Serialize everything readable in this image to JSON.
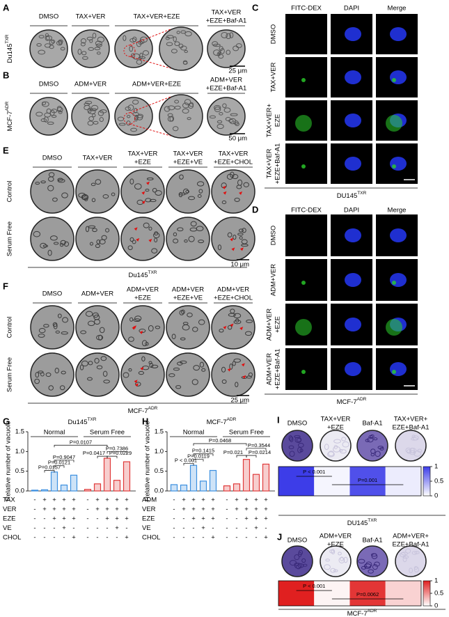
{
  "panels": {
    "A": {
      "label": "A",
      "headers": [
        [
          "DMSO"
        ],
        [
          "TAX+VER"
        ],
        [
          "TAX+VER+EZE"
        ],
        [
          "TAX+VER",
          "+EZE+Baf-A1"
        ]
      ],
      "cell_line": {
        "text": "Du145",
        "sup": "TXR"
      },
      "scale": "25 μm"
    },
    "B": {
      "label": "B",
      "headers": [
        [
          "DMSO"
        ],
        [
          "ADM+VER"
        ],
        [
          "ADM+VER+EZE"
        ],
        [
          "ADM+VER",
          "+EZE+Baf-A1"
        ]
      ],
      "cell_line": {
        "text": "MCF-7",
        "sup": "ADR"
      },
      "scale": "50 μm"
    },
    "C": {
      "label": "C",
      "headers": [
        "FITC-DEX",
        "DAPI",
        "Merge"
      ],
      "header_colors": [
        "#1a9a1a",
        "#2233cc",
        "#000000"
      ],
      "rows": [
        [
          "DMSO"
        ],
        [
          "TAX+VER"
        ],
        [
          "TAX+VER+",
          "EZE"
        ],
        [
          "TAX+VER",
          "+EZE+Baf-A1"
        ]
      ],
      "cell_line": {
        "text": "DU145",
        "sup": "TXR"
      }
    },
    "D": {
      "label": "D",
      "headers": [
        "FITC-DEX",
        "DAPI",
        "Merge"
      ],
      "header_colors": [
        "#1a9a1a",
        "#2233cc",
        "#000000"
      ],
      "rows": [
        [
          "DMSO"
        ],
        [
          "ADM+VER"
        ],
        [
          "ADM+VER",
          "+EZE"
        ],
        [
          "ADM+VER",
          "+EZE+Baf-A1"
        ]
      ],
      "cell_line": {
        "text": "MCF-7",
        "sup": "ADR"
      }
    },
    "E": {
      "label": "E",
      "headers": [
        [
          "DMSO"
        ],
        [
          "TAX+VER"
        ],
        [
          "TAX+VER",
          "+EZE"
        ],
        [
          "TAX+VER",
          "+EZE+VE"
        ],
        [
          "TAX+VER",
          "+EZE+CHOL"
        ]
      ],
      "rows": [
        "Control",
        "Serum Free"
      ],
      "cell_line": {
        "text": "Du145",
        "sup": "TXR"
      },
      "scale": "10 μm"
    },
    "F": {
      "label": "F",
      "headers": [
        [
          "DMSO"
        ],
        [
          "ADM+VER"
        ],
        [
          "ADM+VER",
          "+EZE"
        ],
        [
          "ADM+VER",
          "+EZE+VE"
        ],
        [
          "ADM+VER",
          "+EZE+CHOL"
        ]
      ],
      "rows": [
        "Control",
        "Serum Free"
      ],
      "cell_line": {
        "text": "MCF-7",
        "sup": "ADR"
      },
      "scale": "25 μm"
    }
  },
  "chart_data": [
    {
      "type": "bar",
      "label": "G",
      "title": {
        "text": "Du145",
        "sup": "TXR"
      },
      "y_label": "Relative number of vacuole",
      "ylim": [
        0,
        1.5
      ],
      "yticks": [
        {
          "value": 0,
          "label": "0.0"
        },
        {
          "value": 0.5,
          "label": "0.5"
        },
        {
          "value": 1,
          "label": "1.0"
        },
        {
          "value": 1.5,
          "label": "1.5"
        }
      ],
      "series": [
        {
          "name": "Normal",
          "color": "#3b8fe0",
          "values": [
            0.02,
            0.03,
            0.48,
            0.15,
            0.4
          ]
        },
        {
          "name": "Serum Free",
          "color": "#e03a3a",
          "values": [
            0.04,
            0.18,
            0.83,
            0.27,
            0.74
          ]
        }
      ],
      "pvalues": [
        "P=0.0157",
        "P=0.0121",
        "P=0.9047",
        "P=0.0107",
        "P=0.7386",
        "P=0.0417",
        "P=0.0229"
      ],
      "conditions": [
        {
          "name": "TAX",
          "signs": [
            "-",
            "+",
            "+",
            "+",
            "+",
            "-",
            "+",
            "+",
            "+",
            "+"
          ]
        },
        {
          "name": "VER",
          "signs": [
            "-",
            "+",
            "+",
            "+",
            "+",
            "-",
            "+",
            "+",
            "+",
            "+"
          ]
        },
        {
          "name": "EZE",
          "signs": [
            "-",
            "-",
            "+",
            "+",
            "+",
            "-",
            "-",
            "+",
            "+",
            "+"
          ]
        },
        {
          "name": "VE",
          "signs": [
            "-",
            "-",
            "-",
            "+",
            "-",
            "-",
            "-",
            "-",
            "+",
            "-"
          ]
        },
        {
          "name": "CHOL",
          "signs": [
            "-",
            "-",
            "-",
            "-",
            "+",
            "-",
            "-",
            "-",
            "-",
            "+"
          ]
        }
      ]
    },
    {
      "type": "bar",
      "label": "H",
      "title": {
        "text": "MCF-7",
        "sup": "ADR"
      },
      "y_label": "Relative number of vacuole",
      "ylim": [
        0,
        1.5
      ],
      "yticks": [
        {
          "value": 0,
          "label": "0.0"
        },
        {
          "value": 0.5,
          "label": "0.5"
        },
        {
          "value": 1,
          "label": "1.0"
        },
        {
          "value": 1.5,
          "label": "1.5"
        }
      ],
      "series": [
        {
          "name": "Normal",
          "color": "#3b8fe0",
          "values": [
            0.16,
            0.15,
            0.65,
            0.25,
            0.52
          ]
        },
        {
          "name": "Serum Free",
          "color": "#e03a3a",
          "values": [
            0.13,
            0.18,
            0.8,
            0.42,
            0.68
          ]
        }
      ],
      "pvalues": [
        "P < 0.001",
        "P=0.0119",
        "P=0.1415",
        "P=0.0468",
        "P=0.3544",
        "P=0.021",
        "P=0.0214"
      ],
      "conditions": [
        {
          "name": "ADM",
          "signs": [
            "-",
            "+",
            "+",
            "+",
            "+",
            "-",
            "+",
            "+",
            "+",
            "+"
          ]
        },
        {
          "name": "VER",
          "signs": [
            "-",
            "+",
            "+",
            "+",
            "+",
            "-",
            "+",
            "+",
            "+",
            "+"
          ]
        },
        {
          "name": "EZE",
          "signs": [
            "-",
            "-",
            "+",
            "+",
            "+",
            "-",
            "-",
            "+",
            "+",
            "+"
          ]
        },
        {
          "name": "VE",
          "signs": [
            "-",
            "-",
            "-",
            "+",
            "-",
            "-",
            "-",
            "-",
            "+",
            "-"
          ]
        },
        {
          "name": "CHOL",
          "signs": [
            "-",
            "-",
            "-",
            "-",
            "+",
            "-",
            "-",
            "-",
            "-",
            "+"
          ]
        }
      ]
    },
    {
      "type": "heatmap",
      "label": "I",
      "headers": [
        [
          "DMSO"
        ],
        [
          "TAX+VER",
          "+EZE"
        ],
        [
          "Baf-A1"
        ],
        [
          "TAX+VER+",
          "EZE+Baf-A1"
        ]
      ],
      "values": [
        1,
        0.05,
        0.9,
        0.1
      ],
      "color": "#3d3de8",
      "zlim": [
        0,
        1
      ],
      "zticks": [
        0,
        0.5,
        1
      ],
      "pvalues": [
        "P < 0.001",
        "P=0.001"
      ],
      "cell_line": {
        "text": "DU145",
        "sup": "TXR"
      }
    },
    {
      "type": "heatmap",
      "label": "J",
      "headers": [
        [
          "DMSO"
        ],
        [
          "ADM+VER",
          "+EZE"
        ],
        [
          "Baf-A1"
        ],
        [
          "ADM+VER+",
          "EZE+Baf-A1"
        ]
      ],
      "values": [
        1,
        0.05,
        0.9,
        0.2
      ],
      "color": "#e02020",
      "zlim": [
        0,
        1
      ],
      "zticks": [
        0,
        0.5,
        1
      ],
      "pvalues": [
        "P < 0.001",
        "P=0.0062"
      ],
      "cell_line": {
        "text": "MCF-7",
        "sup": "ADR"
      }
    }
  ]
}
